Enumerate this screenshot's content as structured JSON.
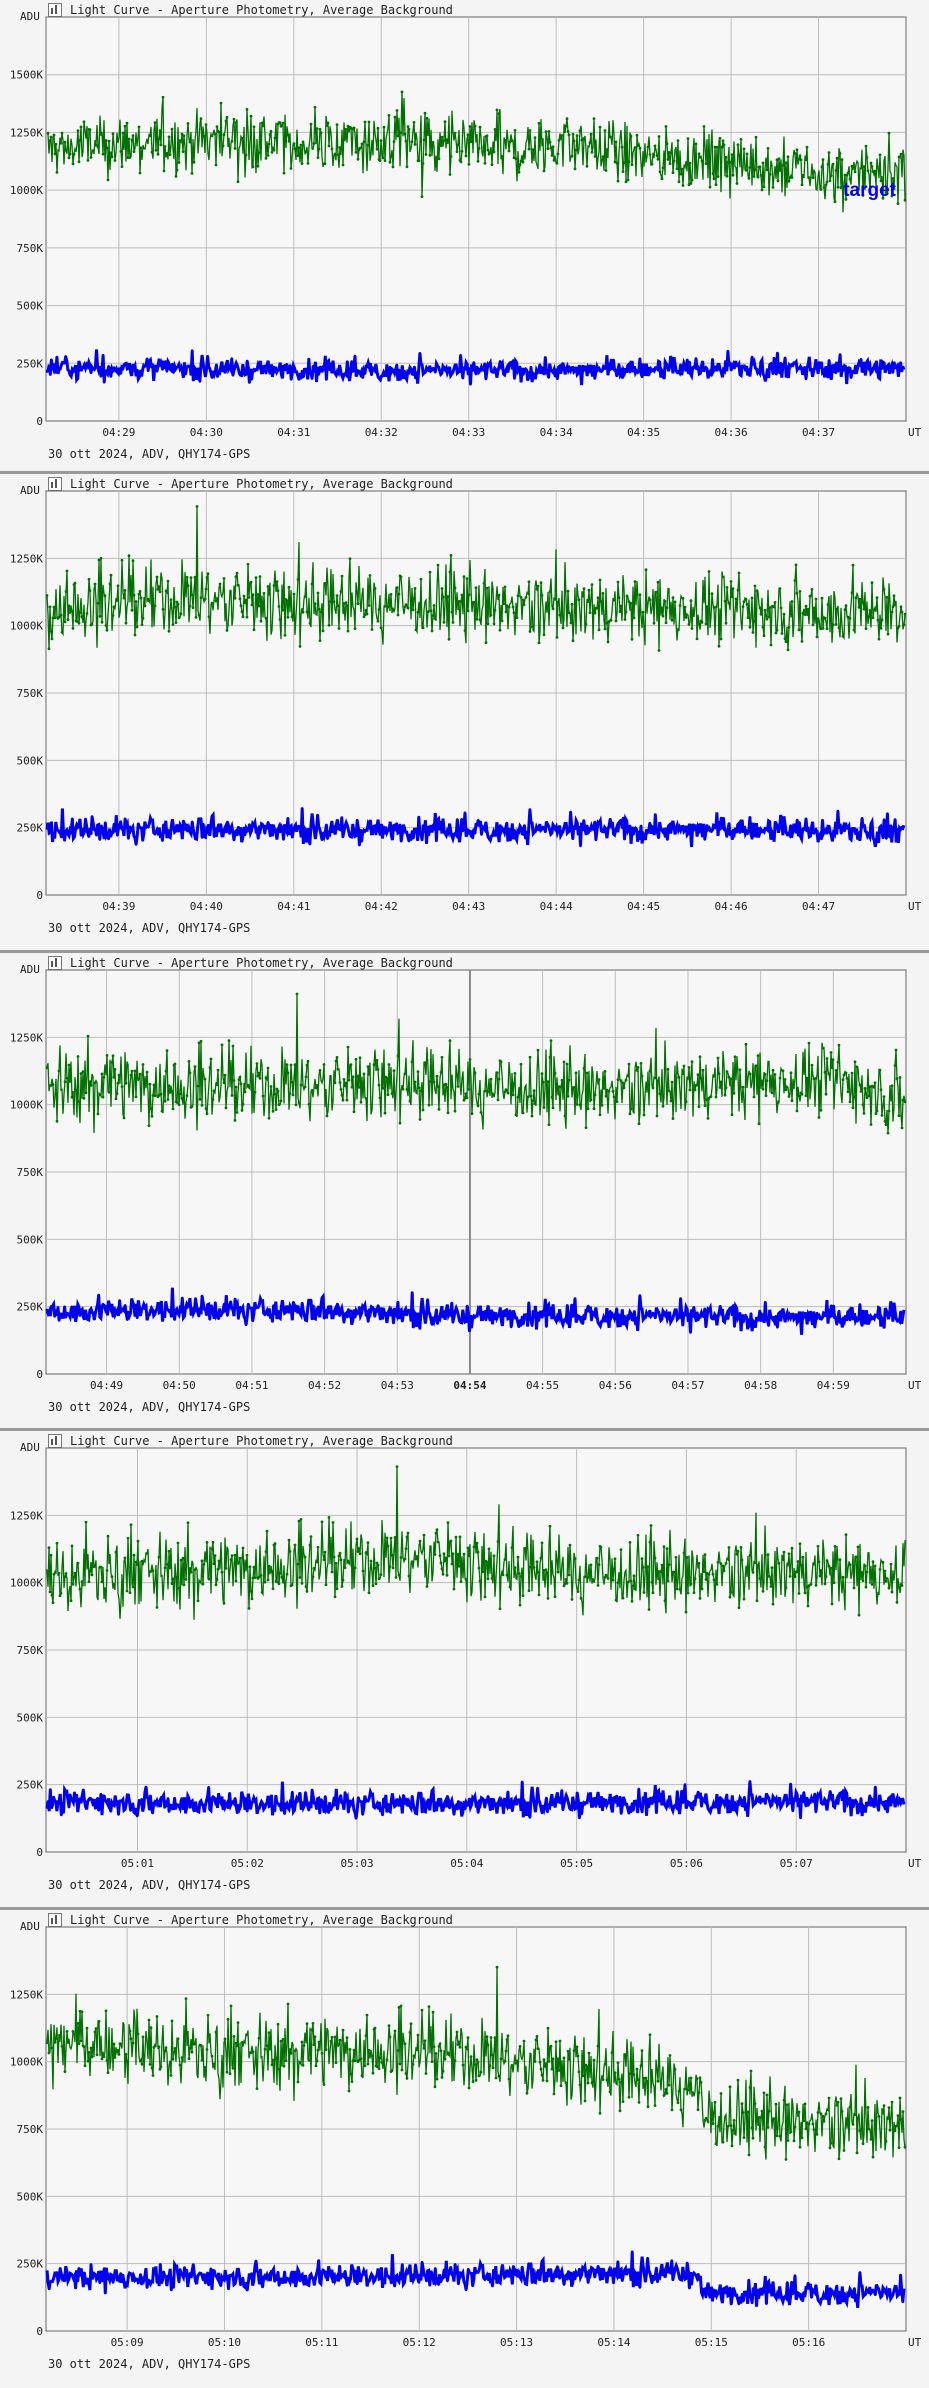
{
  "chart_data": [
    {
      "type": "line",
      "title": "Light Curve - Aperture Photometry, Average Background",
      "subtitle": "30 ott 2024, ADV, QHY174-GPS",
      "ylabel": "ADU",
      "xlabel": "UT",
      "yticks": [
        "0",
        "250K",
        "500K",
        "750K",
        "1000K",
        "1250K",
        "1500K"
      ],
      "ylim": [
        0,
        1750000
      ],
      "xlim": [
        "04:28:10",
        "04:38:00"
      ],
      "xticks": [
        "04:29",
        "04:30",
        "04:31",
        "04:32",
        "04:33",
        "04:34",
        "04:35",
        "04:36",
        "04:37"
      ],
      "bold_tick": "",
      "label": "target",
      "grid": true,
      "series": [
        {
          "color": "#007000",
          "values": [
            [
              "04:28:10",
              1180000
            ],
            [
              "04:28:40",
              1190000
            ],
            [
              "04:29:10",
              1200000
            ],
            [
              "04:29:40",
              1205000
            ],
            [
              "04:30:10",
              1240000
            ],
            [
              "04:30:40",
              1210000
            ],
            [
              "04:31:10",
              1190000
            ],
            [
              "04:31:40",
              1200000
            ],
            [
              "04:32:10",
              1210000
            ],
            [
              "04:32:40",
              1190000
            ],
            [
              "04:33:10",
              1170000
            ],
            [
              "04:33:40",
              1175000
            ],
            [
              "04:34:10",
              1205000
            ],
            [
              "04:34:40",
              1170000
            ],
            [
              "04:35:10",
              1150000
            ],
            [
              "04:35:40",
              1130000
            ],
            [
              "04:36:10",
              1120000
            ],
            [
              "04:36:40",
              1080000
            ],
            [
              "04:37:10",
              1060000
            ],
            [
              "04:38:00",
              1080000
            ]
          ]
        },
        {
          "color": "#0000ee",
          "values": [
            [
              "04:28:10",
              230000
            ],
            [
              "04:30:00",
              225000
            ],
            [
              "04:32:00",
              215000
            ],
            [
              "04:34:00",
              220000
            ],
            [
              "04:36:00",
              230000
            ],
            [
              "04:38:00",
              225000
            ]
          ]
        }
      ]
    },
    {
      "type": "line",
      "title": "Light Curve - Aperture Photometry, Average Background",
      "subtitle": "30 ott 2024, ADV, QHY174-GPS",
      "ylabel": "ADU",
      "xlabel": "UT",
      "yticks": [
        "0",
        "250K",
        "500K",
        "750K",
        "1000K",
        "1250K"
      ],
      "ylim": [
        0,
        1500000
      ],
      "xlim": [
        "04:38:10",
        "04:48:00"
      ],
      "xticks": [
        "04:39",
        "04:40",
        "04:41",
        "04:42",
        "04:43",
        "04:44",
        "04:45",
        "04:46",
        "04:47"
      ],
      "bold_tick": "",
      "label": "",
      "grid": true,
      "series": [
        {
          "color": "#007000",
          "values": [
            [
              "04:38:10",
              1060000
            ],
            [
              "04:39:00",
              1080000
            ],
            [
              "04:40:00",
              1100000
            ],
            [
              "04:41:00",
              1080000
            ],
            [
              "04:42:00",
              1090000
            ],
            [
              "04:43:00",
              1080000
            ],
            [
              "04:44:00",
              1060000
            ],
            [
              "04:45:00",
              1070000
            ],
            [
              "04:46:00",
              1060000
            ],
            [
              "04:47:00",
              1050000
            ],
            [
              "04:48:00",
              1050000
            ]
          ]
        },
        {
          "color": "#0000ee",
          "values": [
            [
              "04:38:10",
              240000
            ],
            [
              "04:40:00",
              245000
            ],
            [
              "04:42:00",
              240000
            ],
            [
              "04:44:00",
              240000
            ],
            [
              "04:46:00",
              245000
            ],
            [
              "04:48:00",
              235000
            ]
          ]
        }
      ]
    },
    {
      "type": "line",
      "title": "Light Curve - Aperture Photometry, Average Background",
      "subtitle": "30 ott 2024, ADV, QHY174-GPS",
      "ylabel": "ADU",
      "xlabel": "UT",
      "yticks": [
        "0",
        "250K",
        "500K",
        "750K",
        "1000K",
        "1250K"
      ],
      "ylim": [
        0,
        1500000
      ],
      "xlim": [
        "04:48:10",
        "05:00:00"
      ],
      "xticks": [
        "04:49",
        "04:50",
        "04:51",
        "04:52",
        "04:53",
        "04:54",
        "04:55",
        "04:56",
        "04:57",
        "04:58",
        "04:59"
      ],
      "bold_tick": "04:54",
      "label": "",
      "grid": true,
      "series": [
        {
          "color": "#007000",
          "values": [
            [
              "04:48:10",
              1070000
            ],
            [
              "04:49:00",
              1080000
            ],
            [
              "04:50:00",
              1060000
            ],
            [
              "04:51:00",
              1060000
            ],
            [
              "04:52:00",
              1070000
            ],
            [
              "04:53:00",
              1090000
            ],
            [
              "04:54:00",
              1070000
            ],
            [
              "04:55:00",
              1060000
            ],
            [
              "04:56:00",
              1050000
            ],
            [
              "04:57:00",
              1070000
            ],
            [
              "04:58:00",
              1090000
            ],
            [
              "04:59:00",
              1090000
            ],
            [
              "05:00:00",
              1020000
            ]
          ]
        },
        {
          "color": "#0000ee",
          "values": [
            [
              "04:48:10",
              230000
            ],
            [
              "04:50:00",
              240000
            ],
            [
              "04:52:00",
              235000
            ],
            [
              "04:54:00",
              215000
            ],
            [
              "04:56:00",
              215000
            ],
            [
              "04:58:00",
              210000
            ],
            [
              "05:00:00",
              215000
            ]
          ]
        }
      ]
    },
    {
      "type": "line",
      "title": "Light Curve - Aperture Photometry, Average Background",
      "subtitle": "30 ott 2024, ADV, QHY174-GPS",
      "ylabel": "ADU",
      "xlabel": "UT",
      "yticks": [
        "0",
        "250K",
        "500K",
        "750K",
        "1000K",
        "1250K"
      ],
      "ylim": [
        0,
        1500000
      ],
      "xlim": [
        "05:00:10",
        "05:08:00"
      ],
      "xticks": [
        "05:01",
        "05:02",
        "05:03",
        "05:04",
        "05:05",
        "05:06",
        "05:07"
      ],
      "bold_tick": "",
      "label": "",
      "grid": true,
      "series": [
        {
          "color": "#007000",
          "values": [
            [
              "05:00:10",
              1020000
            ],
            [
              "05:01:00",
              1040000
            ],
            [
              "05:02:00",
              1050000
            ],
            [
              "05:03:00",
              1070000
            ],
            [
              "05:03:40",
              1100000
            ],
            [
              "05:04:00",
              1070000
            ],
            [
              "05:05:00",
              1040000
            ],
            [
              "05:06:00",
              1030000
            ],
            [
              "05:07:00",
              1040000
            ],
            [
              "05:08:00",
              1040000
            ]
          ]
        },
        {
          "color": "#0000ee",
          "values": [
            [
              "05:00:10",
              185000
            ],
            [
              "05:02:00",
              180000
            ],
            [
              "05:04:00",
              180000
            ],
            [
              "05:06:00",
              185000
            ],
            [
              "05:08:00",
              185000
            ]
          ]
        }
      ]
    },
    {
      "type": "line",
      "title": "Light Curve - Aperture Photometry, Average Background",
      "subtitle": "30 ott 2024, ADV, QHY174-GPS",
      "ylabel": "ADU",
      "xlabel": "UT",
      "yticks": [
        "0",
        "250K",
        "500K",
        "750K",
        "1000K",
        "1250K"
      ],
      "ylim": [
        0,
        1500000
      ],
      "xlim": [
        "05:08:10",
        "05:17:00"
      ],
      "xticks": [
        "05:09",
        "05:10",
        "05:11",
        "05:12",
        "05:13",
        "05:14",
        "05:15",
        "05:16"
      ],
      "bold_tick": "",
      "label": "",
      "grid": true,
      "series": [
        {
          "color": "#007000",
          "values": [
            [
              "05:08:10",
              1080000
            ],
            [
              "05:09:00",
              1050000
            ],
            [
              "05:10:00",
              1030000
            ],
            [
              "05:11:00",
              1040000
            ],
            [
              "05:12:00",
              1030000
            ],
            [
              "05:13:00",
              1000000
            ],
            [
              "05:14:00",
              960000
            ],
            [
              "05:14:50",
              910000
            ],
            [
              "05:14:55",
              800000
            ],
            [
              "05:16:00",
              770000
            ],
            [
              "05:17:00",
              760000
            ]
          ]
        },
        {
          "color": "#0000ee",
          "values": [
            [
              "05:08:10",
              200000
            ],
            [
              "05:10:00",
              200000
            ],
            [
              "05:12:00",
              205000
            ],
            [
              "05:14:00",
              215000
            ],
            [
              "05:14:50",
              215000
            ],
            [
              "05:14:55",
              140000
            ],
            [
              "05:16:00",
              140000
            ],
            [
              "05:17:00",
              140000
            ]
          ]
        }
      ]
    }
  ]
}
